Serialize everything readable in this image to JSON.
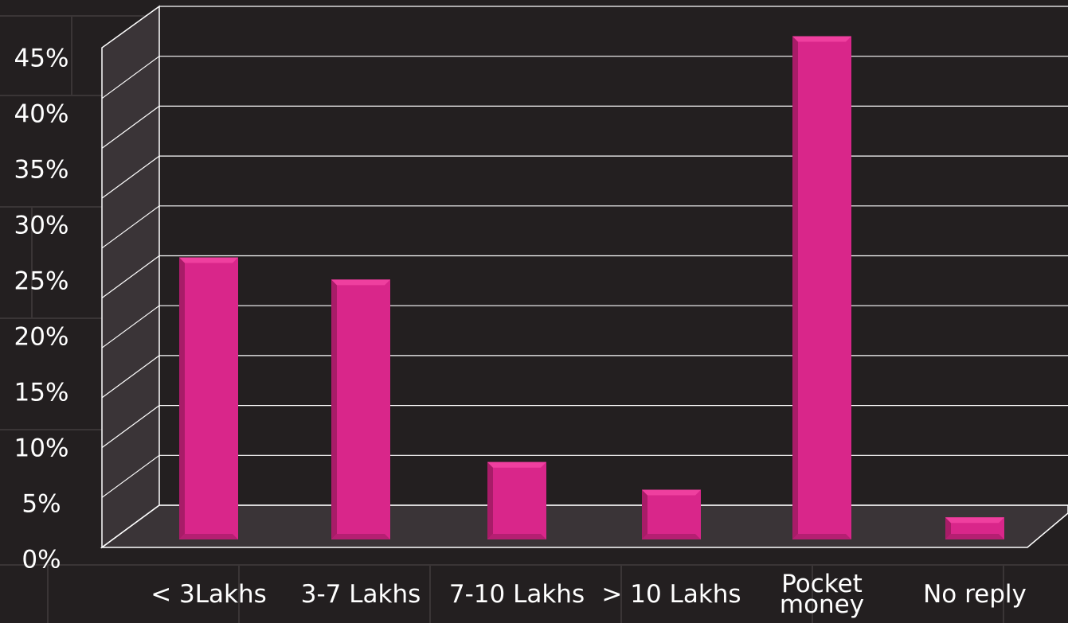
{
  "chart_data": {
    "type": "bar",
    "categories": [
      "< 3Lakhs",
      "3-7 Lakhs",
      "7-10 Lakhs",
      "> 10 Lakhs",
      "Pocket money",
      "No reply"
    ],
    "values": [
      25.5,
      23.5,
      7,
      4.5,
      45.5,
      2
    ],
    "color": "#d9268a",
    "ylim": [
      0,
      50
    ],
    "yticks": [
      {
        "value": 0,
        "label": "0%"
      },
      {
        "value": 5,
        "label": "5%"
      },
      {
        "value": 10,
        "label": "10%"
      },
      {
        "value": 15,
        "label": "15%"
      },
      {
        "value": 20,
        "label": "20%"
      },
      {
        "value": 25,
        "label": "25%"
      },
      {
        "value": 30,
        "label": "30%"
      },
      {
        "value": 35,
        "label": "35%"
      },
      {
        "value": 40,
        "label": "40%"
      },
      {
        "value": 45,
        "label": "45%"
      }
    ],
    "grid": true
  }
}
